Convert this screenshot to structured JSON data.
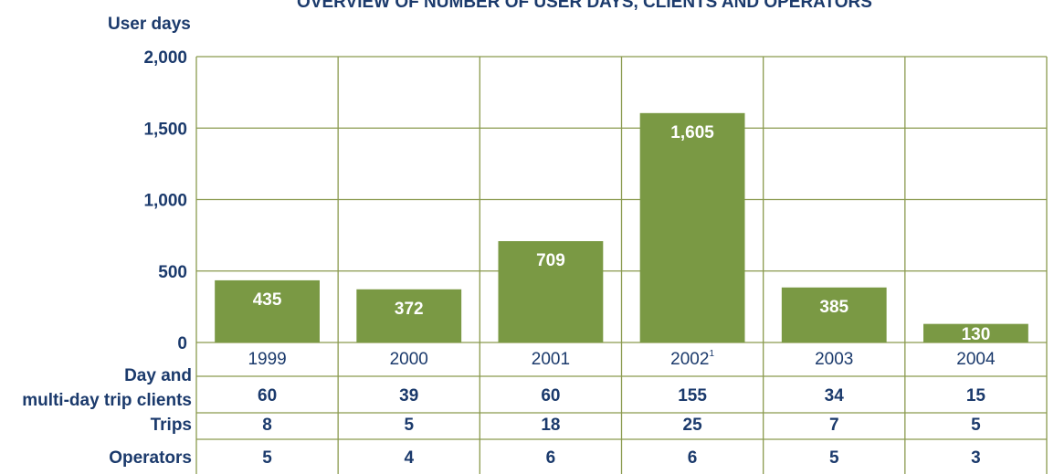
{
  "chart_data": {
    "type": "bar",
    "title": "OVERVIEW OF NUMBER OF USER DAYS, CLIENTS AND OPERATORS",
    "ylabel": "User days",
    "categories": [
      "1999",
      "2000",
      "2001",
      "2002",
      "2003",
      "2004"
    ],
    "category_superscripts": [
      null,
      null,
      null,
      "1",
      null,
      null
    ],
    "values": [
      435,
      372,
      709,
      1605,
      385,
      130
    ],
    "value_labels": [
      "435",
      "372",
      "709",
      "1,605",
      "385",
      "130"
    ],
    "color": "#7a9944",
    "ylim": [
      0,
      2000
    ],
    "yticks": [
      0,
      500,
      {
        "value": 1000,
        "label": "1,000"
      },
      {
        "value": 1500,
        "label": "1,500"
      },
      {
        "value": 2000,
        "label": "2,000"
      }
    ],
    "grid": true
  },
  "table": {
    "rows": [
      {
        "label": [
          "Day and",
          "multi-day trip clients"
        ],
        "values": [
          "60",
          "39",
          "60",
          "155",
          "34",
          "15"
        ]
      },
      {
        "label": [
          "Trips"
        ],
        "values": [
          "8",
          "5",
          "18",
          "25",
          "7",
          "5"
        ]
      },
      {
        "label": [
          "Operators"
        ],
        "values": [
          "5",
          "4",
          "6",
          "6",
          "5",
          "3"
        ]
      }
    ]
  }
}
